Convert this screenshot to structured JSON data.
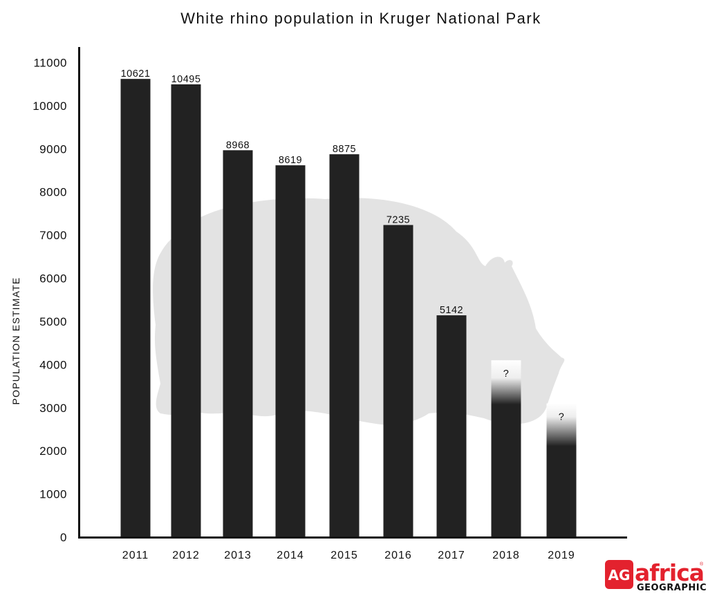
{
  "chart_data": {
    "type": "bar",
    "title": "White rhino population in Kruger National Park",
    "ylabel": "POPULATION ESTIMATE",
    "xlabel": "",
    "ylim": [
      0,
      11000
    ],
    "yticks": [
      "0",
      "1000",
      "2000",
      "3000",
      "4000",
      "5000",
      "6000",
      "7000",
      "8000",
      "9000",
      "10000",
      "11000"
    ],
    "categories": [
      "2011",
      "2012",
      "2013",
      "2014",
      "2015",
      "2016",
      "2017",
      "2018",
      "2019"
    ],
    "values": [
      10621,
      10495,
      8968,
      8619,
      8875,
      7235,
      5142,
      4100,
      3100
    ],
    "labels": [
      "10621",
      "10495",
      "8968",
      "8619",
      "8875",
      "7235",
      "5142",
      "?",
      "?"
    ],
    "uncertain": [
      false,
      false,
      false,
      false,
      false,
      false,
      false,
      true,
      true
    ],
    "bar_color": "#222222",
    "grid": false,
    "background_image": "rhino-silhouette"
  },
  "logo": {
    "badge": "AG",
    "name": "africa",
    "sub": "GEOGRAPHIC",
    "mark": "®",
    "red": "#e3222e"
  }
}
